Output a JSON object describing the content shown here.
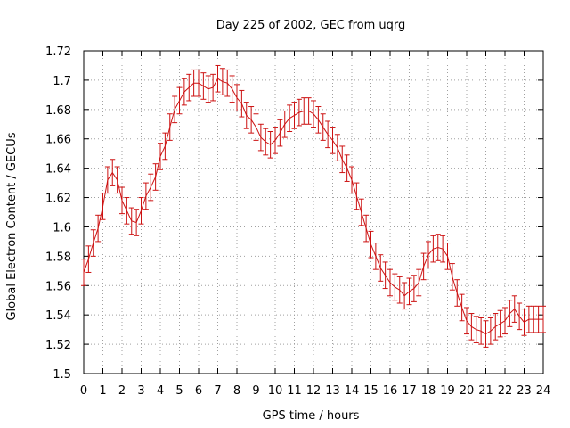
{
  "chart_data": {
    "type": "line",
    "title": "Day 225 of 2002, GEC from uqrg",
    "xlabel": "GPS time / hours",
    "ylabel": "Global Electron Content / GECUs",
    "xlim": [
      0,
      24
    ],
    "ylim": [
      1.5,
      1.72
    ],
    "xticks": [
      0,
      1,
      2,
      3,
      4,
      5,
      6,
      7,
      8,
      9,
      10,
      11,
      12,
      13,
      14,
      15,
      16,
      17,
      18,
      19,
      20,
      21,
      22,
      23,
      24
    ],
    "yticks": [
      1.5,
      1.52,
      1.54,
      1.56,
      1.58,
      1.6,
      1.62,
      1.64,
      1.66,
      1.68,
      1.7,
      1.72
    ],
    "ytick_labels": [
      "1.5",
      "1.52",
      "1.54",
      "1.56",
      "1.58",
      "1.6",
      "1.62",
      "1.64",
      "1.66",
      "1.68",
      "1.7",
      "1.72"
    ],
    "grid": true,
    "error_bar_halfwidth": 0.009,
    "color": "#cc1111",
    "series": [
      {
        "x": [
          0.0,
          0.25,
          0.5,
          0.75,
          1.0,
          1.25,
          1.5,
          1.75,
          2.0,
          2.25,
          2.5,
          2.75,
          3.0,
          3.25,
          3.5,
          3.75,
          4.0,
          4.25,
          4.5,
          4.75,
          5.0,
          5.25,
          5.5,
          5.75,
          6.0,
          6.25,
          6.5,
          6.75,
          7.0,
          7.25,
          7.5,
          7.75,
          8.0,
          8.25,
          8.5,
          8.75,
          9.0,
          9.25,
          9.5,
          9.75,
          10.0,
          10.25,
          10.5,
          10.75,
          11.0,
          11.25,
          11.5,
          11.75,
          12.0,
          12.25,
          12.5,
          12.75,
          13.0,
          13.25,
          13.5,
          13.75,
          14.0,
          14.25,
          14.5,
          14.75,
          15.0,
          15.25,
          15.5,
          15.75,
          16.0,
          16.25,
          16.5,
          16.75,
          17.0,
          17.25,
          17.5,
          17.75,
          18.0,
          18.25,
          18.5,
          18.75,
          19.0,
          19.25,
          19.5,
          19.75,
          20.0,
          20.25,
          20.5,
          20.75,
          21.0,
          21.25,
          21.5,
          21.75,
          22.0,
          22.25,
          22.5,
          22.75,
          23.0,
          23.25,
          23.5,
          23.75,
          24.0
        ],
        "y": [
          1.569,
          1.578,
          1.589,
          1.599,
          1.614,
          1.632,
          1.637,
          1.632,
          1.618,
          1.611,
          1.604,
          1.603,
          1.611,
          1.621,
          1.627,
          1.634,
          1.648,
          1.655,
          1.668,
          1.68,
          1.686,
          1.692,
          1.695,
          1.698,
          1.698,
          1.696,
          1.694,
          1.695,
          1.701,
          1.699,
          1.698,
          1.694,
          1.688,
          1.684,
          1.676,
          1.673,
          1.668,
          1.661,
          1.658,
          1.656,
          1.659,
          1.664,
          1.67,
          1.674,
          1.676,
          1.678,
          1.679,
          1.679,
          1.677,
          1.673,
          1.668,
          1.663,
          1.659,
          1.654,
          1.646,
          1.64,
          1.632,
          1.621,
          1.61,
          1.599,
          1.588,
          1.58,
          1.572,
          1.567,
          1.562,
          1.559,
          1.557,
          1.553,
          1.556,
          1.558,
          1.562,
          1.573,
          1.581,
          1.585,
          1.586,
          1.585,
          1.58,
          1.566,
          1.555,
          1.545,
          1.536,
          1.532,
          1.53,
          1.529,
          1.527,
          1.529,
          1.532,
          1.534,
          1.536,
          1.541,
          1.544,
          1.539,
          1.535,
          1.537,
          1.537,
          1.537,
          1.537
        ]
      }
    ]
  }
}
